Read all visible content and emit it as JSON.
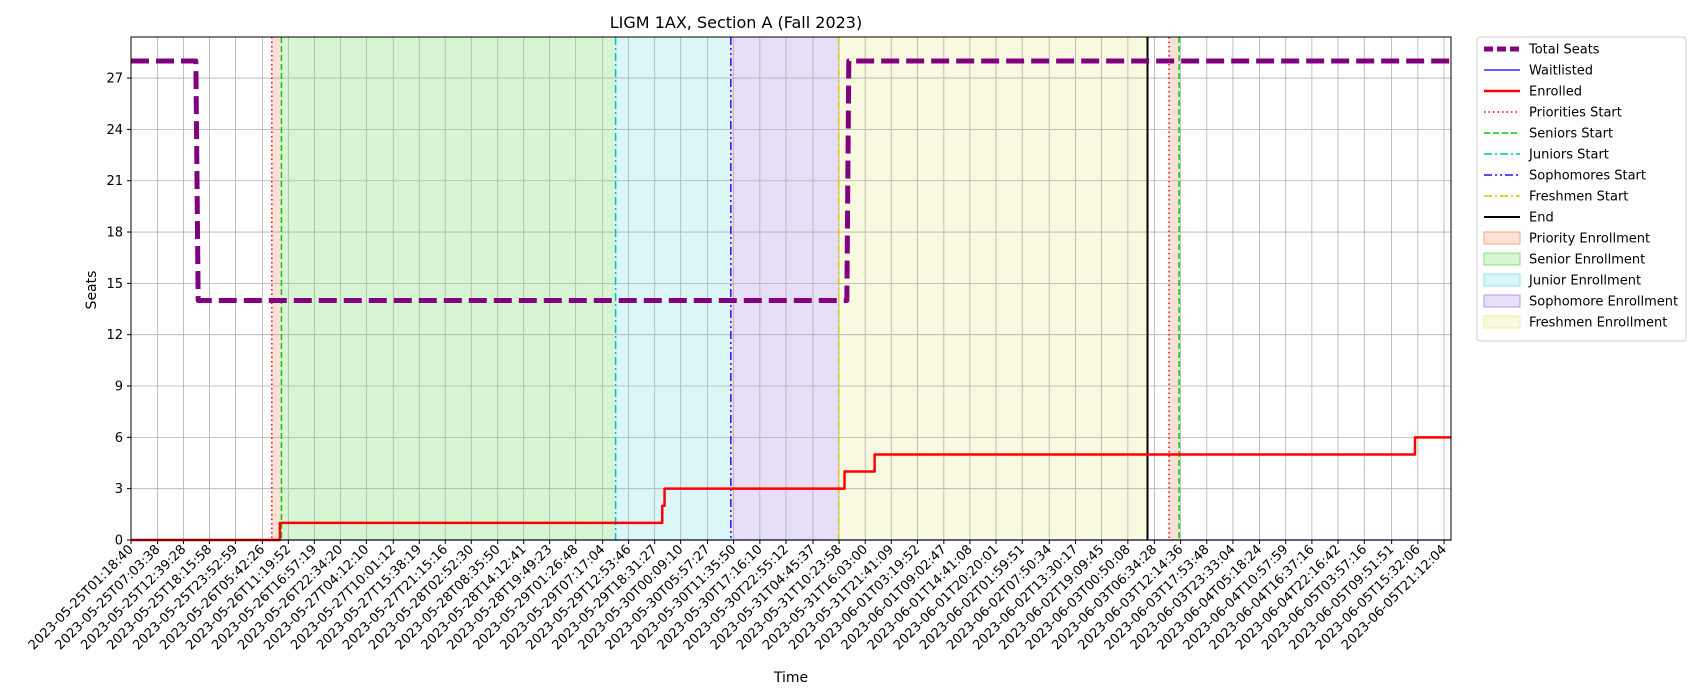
{
  "chart_data": {
    "type": "line",
    "title": "LIGM 1AX, Section A (Fall 2023)",
    "xlabel": "Time",
    "ylabel": "Seats",
    "ylim": [
      0,
      29.4
    ],
    "yticks": [
      0,
      3,
      6,
      9,
      12,
      15,
      18,
      21,
      24,
      27
    ],
    "grid": true,
    "legend_position": "outside-right-top",
    "x_start": "2023-05-25T01:18:40",
    "x_end": "2023-06-05T22:42:00",
    "xtick_labels": [
      "2023-05-25T01:18:40",
      "2023-05-25T07:03:38",
      "2023-05-25T12:39:28",
      "2023-05-25T18:15:58",
      "2023-05-25T23:52:59",
      "2023-05-26T05:42:26",
      "2023-05-26T11:19:52",
      "2023-05-26T16:57:19",
      "2023-05-26T22:34:20",
      "2023-05-27T04:12:10",
      "2023-05-27T10:01:12",
      "2023-05-27T15:38:19",
      "2023-05-27T21:15:16",
      "2023-05-28T02:52:30",
      "2023-05-28T08:35:50",
      "2023-05-28T14:12:41",
      "2023-05-28T19:49:23",
      "2023-05-29T01:26:48",
      "2023-05-29T07:17:04",
      "2023-05-29T12:53:46",
      "2023-05-29T18:31:27",
      "2023-05-30T00:09:10",
      "2023-05-30T05:57:27",
      "2023-05-30T11:35:50",
      "2023-05-30T17:16:10",
      "2023-05-30T22:55:12",
      "2023-05-31T04:45:37",
      "2023-05-31T10:23:58",
      "2023-05-31T16:03:00",
      "2023-05-31T21:41:09",
      "2023-06-01T03:19:52",
      "2023-06-01T09:02:47",
      "2023-06-01T14:41:08",
      "2023-06-01T20:20:01",
      "2023-06-02T01:59:51",
      "2023-06-02T07:50:34",
      "2023-06-02T13:30:17",
      "2023-06-02T19:09:45",
      "2023-06-03T00:50:08",
      "2023-06-03T06:34:28",
      "2023-06-03T12:14:36",
      "2023-06-03T17:53:48",
      "2023-06-03T23:33:04",
      "2023-06-04T05:18:24",
      "2023-06-04T10:57:59",
      "2023-06-04T16:37:16",
      "2023-06-04T22:16:42",
      "2023-06-05T03:57:16",
      "2023-06-05T09:51:51",
      "2023-06-05T15:32:06",
      "2023-06-05T21:12:04"
    ],
    "series": [
      {
        "name": "Total Seats",
        "color": "#800080",
        "style": "dashed",
        "points": [
          [
            "2023-05-25T01:18:40",
            28
          ],
          [
            "2023-05-25T15:20:00",
            28
          ],
          [
            "2023-05-25T15:50:00",
            14
          ],
          [
            "2023-05-31T12:05:00",
            14
          ],
          [
            "2023-05-31T12:30:00",
            28
          ],
          [
            "2023-06-05T22:42:00",
            28
          ]
        ]
      },
      {
        "name": "Waitlisted",
        "color": "#0000ff",
        "style": "solid",
        "points": [
          [
            "2023-05-25T01:18:40",
            0
          ],
          [
            "2023-06-05T22:42:00",
            0
          ]
        ]
      },
      {
        "name": "Enrolled",
        "color": "#ff0000",
        "style": "solid",
        "points": [
          [
            "2023-05-25T01:18:40",
            0
          ],
          [
            "2023-05-26T09:30:00",
            0
          ],
          [
            "2023-05-26T09:30:00",
            1
          ],
          [
            "2023-05-29T20:10:00",
            1
          ],
          [
            "2023-05-29T20:10:00",
            2
          ],
          [
            "2023-05-29T20:40:00",
            2
          ],
          [
            "2023-05-29T20:40:00",
            3
          ],
          [
            "2023-05-31T11:35:00",
            3
          ],
          [
            "2023-05-31T11:35:00",
            4
          ],
          [
            "2023-05-31T18:05:00",
            4
          ],
          [
            "2023-05-31T18:05:00",
            5
          ],
          [
            "2023-06-05T14:55:00",
            5
          ],
          [
            "2023-06-05T14:55:00",
            6
          ],
          [
            "2023-06-05T22:42:00",
            6
          ]
        ]
      }
    ],
    "vlines": [
      {
        "name": "Priorities Start",
        "x": "2023-05-26T07:45:00",
        "color": "#ff0000",
        "style": "dotted"
      },
      {
        "name": "Seniors Start",
        "x": "2023-05-26T09:50:00",
        "color": "#00cc00",
        "style": "dashed"
      },
      {
        "name": "Juniors Start",
        "x": "2023-05-29T10:05:00",
        "color": "#00bfbf",
        "style": "dashdot"
      },
      {
        "name": "Sophomores Start",
        "x": "2023-05-30T11:00:00",
        "color": "#4000ff",
        "style": "dashdotdot"
      },
      {
        "name": "Freshmen Start",
        "x": "2023-05-31T10:20:00",
        "color": "#d6c900",
        "style": "dashdot"
      },
      {
        "name": "End",
        "x": "2023-06-03T05:05:00",
        "color": "#000000",
        "style": "solid"
      },
      {
        "name": "Priorities Start (2)",
        "x": "2023-06-03T09:45:00",
        "color": "#ff0000",
        "style": "dotted"
      },
      {
        "name": "Seniors Start (2)",
        "x": "2023-06-03T11:55:00",
        "color": "#00cc00",
        "style": "dashed"
      }
    ],
    "spans": [
      {
        "name": "Priority Enrollment",
        "x0": "2023-05-26T07:45:00",
        "x1": "2023-05-26T09:50:00",
        "color": "#f4a582"
      },
      {
        "name": "Senior Enrollment",
        "x0": "2023-05-26T09:50:00",
        "x1": "2023-05-29T10:05:00",
        "color": "#88e07a"
      },
      {
        "name": "Junior Enrollment",
        "x0": "2023-05-29T10:05:00",
        "x1": "2023-05-30T11:00:00",
        "color": "#8ee3e8"
      },
      {
        "name": "Sophomore Enrollment",
        "x0": "2023-05-30T11:00:00",
        "x1": "2023-05-31T10:20:00",
        "color": "#b79ae6"
      },
      {
        "name": "Freshmen Enrollment",
        "x0": "2023-05-31T10:20:00",
        "x1": "2023-06-03T05:05:00",
        "color": "#eeeea0"
      },
      {
        "name": "Priority Enrollment (2)",
        "x0": "2023-06-03T09:45:00",
        "x1": "2023-06-03T11:55:00",
        "color": "#f4a582"
      }
    ],
    "legend": [
      {
        "label": "Total Seats",
        "kind": "line",
        "color": "#800080",
        "style": "dashed",
        "width": 5
      },
      {
        "label": "Waitlisted",
        "kind": "line",
        "color": "#0000ff",
        "style": "solid",
        "width": 1.2
      },
      {
        "label": "Enrolled",
        "kind": "line",
        "color": "#ff0000",
        "style": "solid",
        "width": 2.5
      },
      {
        "label": "Priorities Start",
        "kind": "line",
        "color": "#ff0000",
        "style": "dotted",
        "width": 1.5
      },
      {
        "label": "Seniors Start",
        "kind": "line",
        "color": "#00cc00",
        "style": "dashed",
        "width": 1.5
      },
      {
        "label": "Juniors Start",
        "kind": "line",
        "color": "#00bfbf",
        "style": "dashdot",
        "width": 1.5
      },
      {
        "label": "Sophomores Start",
        "kind": "line",
        "color": "#4000ff",
        "style": "dashdotdot",
        "width": 1.5
      },
      {
        "label": "Freshmen Start",
        "kind": "line",
        "color": "#d6c900",
        "style": "dashdot",
        "width": 1.5
      },
      {
        "label": "End",
        "kind": "line",
        "color": "#000000",
        "style": "solid",
        "width": 2
      },
      {
        "label": "Priority Enrollment",
        "kind": "patch",
        "color": "#f4a582"
      },
      {
        "label": "Senior Enrollment",
        "kind": "patch",
        "color": "#88e07a"
      },
      {
        "label": "Junior Enrollment",
        "kind": "patch",
        "color": "#8ee3e8"
      },
      {
        "label": "Sophomore Enrollment",
        "kind": "patch",
        "color": "#b79ae6"
      },
      {
        "label": "Freshmen Enrollment",
        "kind": "patch",
        "color": "#eeeea0"
      }
    ]
  }
}
